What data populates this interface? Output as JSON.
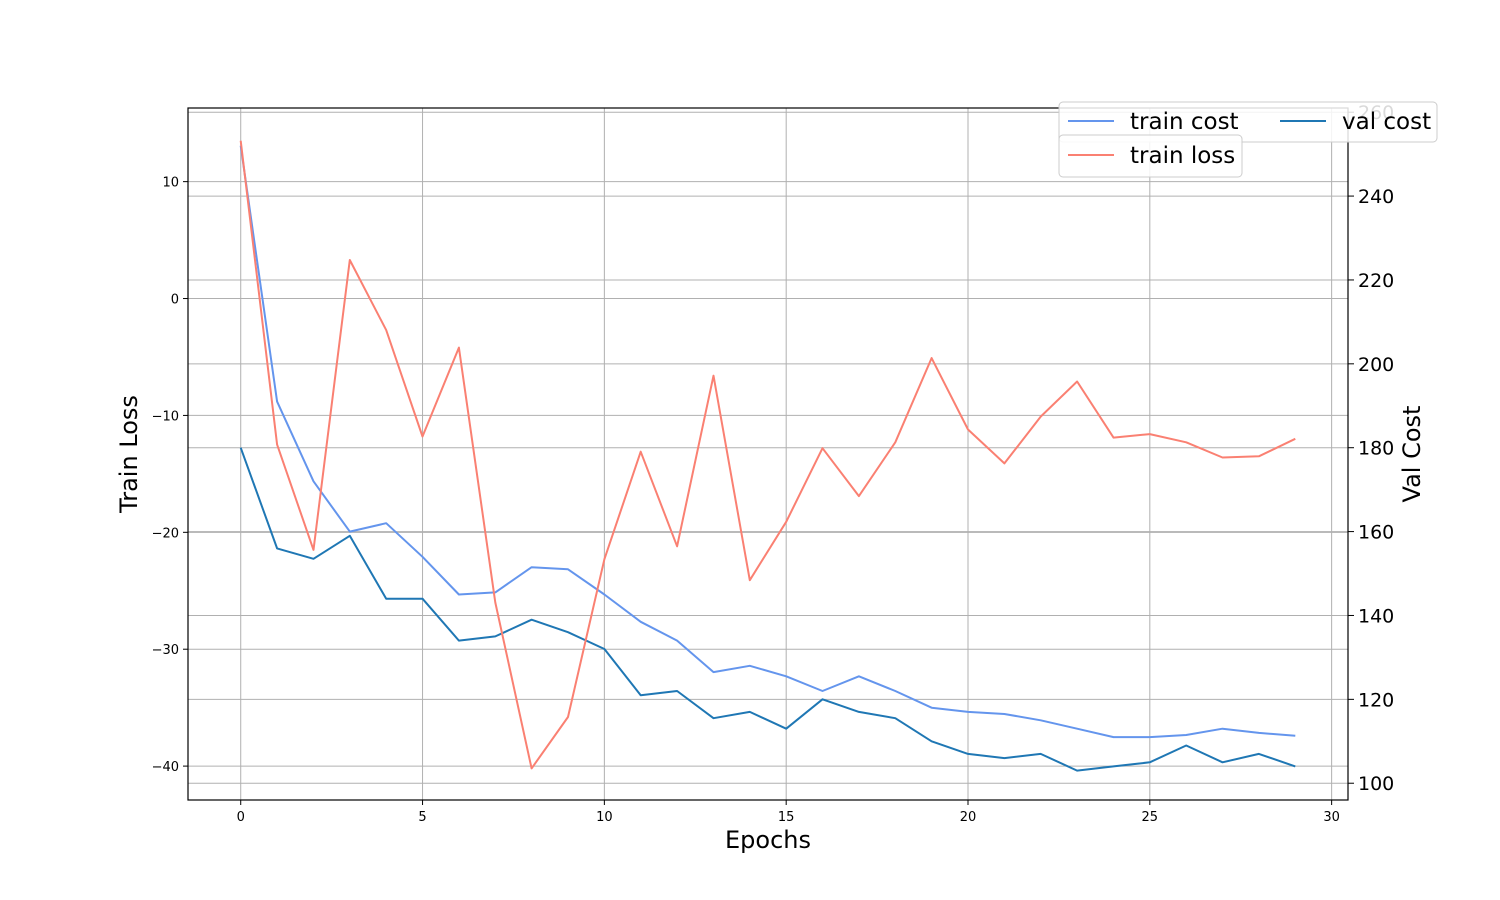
{
  "chart_data": {
    "type": "line",
    "xlabel": "Epochs",
    "ylabel_left": "Train Loss",
    "ylabel_right": "Val Cost",
    "grid": true,
    "legend_placement": "top-right",
    "x": [
      0,
      1,
      2,
      3,
      4,
      5,
      6,
      7,
      8,
      9,
      10,
      11,
      12,
      13,
      14,
      15,
      16,
      17,
      18,
      19,
      20,
      21,
      22,
      23,
      24,
      25,
      26,
      27,
      28,
      29
    ],
    "xlim": [
      -1.45,
      30.45
    ],
    "xticks": [
      0,
      5,
      10,
      15,
      20,
      25,
      30
    ],
    "ylim_left": [
      -42.9,
      16.3
    ],
    "yticks_left": [
      -40,
      -30,
      -20,
      -10,
      0,
      10
    ],
    "ylim_right": [
      96.0,
      261.0
    ],
    "yticks_right": [
      100,
      120,
      140,
      160,
      180,
      200,
      220,
      240,
      260
    ],
    "series": [
      {
        "name": "train cost",
        "axis": "right",
        "color": "#6495ed",
        "values": [
          252,
          191,
          172,
          160,
          162,
          154,
          145,
          145.5,
          151.5,
          151,
          145,
          138.5,
          134,
          126.5,
          128,
          125.5,
          122,
          125.5,
          122,
          118,
          117,
          116.5,
          115,
          113,
          111,
          111,
          111.5,
          113,
          112,
          111.3
        ]
      },
      {
        "name": "val cost",
        "axis": "right",
        "color": "#1f77b4",
        "values": [
          180,
          156,
          153.5,
          159,
          144,
          144,
          134,
          135,
          139,
          136,
          132,
          121,
          122,
          115.5,
          117,
          113,
          120,
          117,
          115.5,
          110,
          107,
          106,
          107,
          103,
          104,
          105,
          109,
          105,
          107,
          104
        ]
      },
      {
        "name": "train loss",
        "axis": "left",
        "color": "#fa8072",
        "values": [
          13.5,
          -12.5,
          -21.5,
          3.3,
          -2.7,
          -11.8,
          -4.2,
          -26,
          -40.2,
          -35.8,
          -22.3,
          -13.1,
          -21.2,
          -6.6,
          -24.1,
          -19.1,
          -12.8,
          -16.9,
          -12.3,
          -5.1,
          -11.2,
          -14.1,
          -10.1,
          -7.1,
          -11.9,
          -11.6,
          -12.3,
          -13.6,
          -13.5,
          -12
        ]
      }
    ]
  }
}
